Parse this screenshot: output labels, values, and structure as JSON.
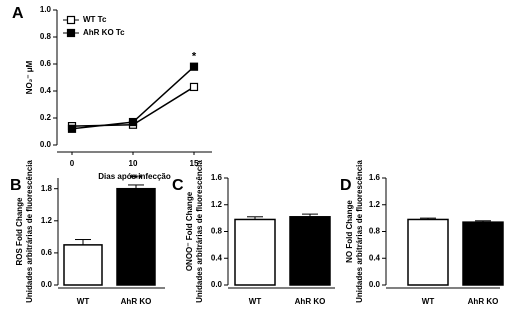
{
  "chart_data": [
    {
      "type": "line",
      "panel": "A",
      "xlabel": "Dias após infecção",
      "ylabel": "NO₂⁻ μM",
      "categories": [
        "0",
        "10",
        "15"
      ],
      "series": [
        {
          "name": "WT Tc",
          "color": "#ffffff",
          "values": [
            0.14,
            0.15,
            0.43
          ]
        },
        {
          "name": "AhR KO Tc",
          "color": "#000000",
          "values": [
            0.12,
            0.17,
            0.58
          ]
        }
      ],
      "ylim": [
        0,
        1.0
      ],
      "yticks": [
        {
          "value": 0,
          "label": "0.0"
        },
        {
          "value": 0.2,
          "label": "0.2"
        },
        {
          "value": 0.4,
          "label": "0.4"
        },
        {
          "value": 0.6,
          "label": "0.6"
        },
        {
          "value": 0.8,
          "label": "0.8"
        },
        {
          "value": 1.0,
          "label": "1.0"
        }
      ],
      "annotation": "*",
      "legend": "upper left"
    },
    {
      "type": "bar",
      "panel": "B",
      "ylabel": [
        "ROS Fold Change",
        "Unidades arbitrárias de fluorescência"
      ],
      "categories": [
        "WT",
        "AhR KO"
      ],
      "values": [
        0.75,
        1.8
      ],
      "errors": [
        0.1,
        0.07
      ],
      "colors": [
        "#ffffff",
        "#000000"
      ],
      "ylim": [
        0,
        2.0
      ],
      "yticks": [
        {
          "value": 0,
          "label": "0.0"
        },
        {
          "value": 0.6,
          "label": "0.6"
        },
        {
          "value": 1.2,
          "label": "1.2"
        },
        {
          "value": 1.8,
          "label": "1.8"
        }
      ],
      "annotation": "***"
    },
    {
      "type": "bar",
      "panel": "C",
      "ylabel": [
        "ONOO⁻ Fold Change",
        "Unidades arbitrárias de fluorescência"
      ],
      "categories": [
        "WT",
        "AhR KO"
      ],
      "values": [
        0.98,
        1.02
      ],
      "errors": [
        0.04,
        0.04
      ],
      "colors": [
        "#ffffff",
        "#000000"
      ],
      "ylim": [
        0,
        1.6
      ],
      "yticks": [
        {
          "value": 0,
          "label": "0.0"
        },
        {
          "value": 0.4,
          "label": "0.4"
        },
        {
          "value": 0.8,
          "label": "0.8"
        },
        {
          "value": 1.2,
          "label": "1.2"
        },
        {
          "value": 1.6,
          "label": "1.6"
        }
      ]
    },
    {
      "type": "bar",
      "panel": "D",
      "ylabel": [
        "NO Fold Change",
        "Unidades arbitrárias de fluorescência"
      ],
      "categories": [
        "WT",
        "AhR KO"
      ],
      "values": [
        0.98,
        0.94
      ],
      "errors": [
        0.02,
        0.02
      ],
      "colors": [
        "#ffffff",
        "#000000"
      ],
      "ylim": [
        0,
        1.6
      ],
      "yticks": [
        {
          "value": 0,
          "label": "0.0"
        },
        {
          "value": 0.4,
          "label": "0.4"
        },
        {
          "value": 0.8,
          "label": "0.8"
        },
        {
          "value": 1.2,
          "label": "1.2"
        },
        {
          "value": 1.6,
          "label": "1.6"
        }
      ]
    }
  ]
}
